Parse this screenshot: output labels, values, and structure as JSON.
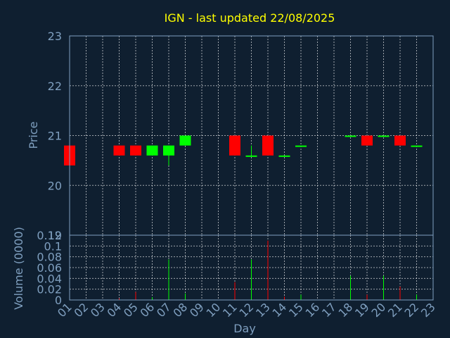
{
  "chart_data": {
    "type": "candlestick",
    "title": "IGN - last updated 22/08/2025",
    "xlabel": "Day",
    "ylabel": "Price",
    "volume_ylabel": "Volume (0000)",
    "categories": [
      "01",
      "02",
      "03",
      "04",
      "05",
      "06",
      "07",
      "08",
      "09",
      "10",
      "11",
      "12",
      "13",
      "14",
      "15",
      "16",
      "17",
      "18",
      "19",
      "20",
      "21",
      "22",
      "23"
    ],
    "price_ylim": [
      19,
      23
    ],
    "price_ticks": [
      "19",
      "20",
      "21",
      "22",
      "23"
    ],
    "volume_ylim": [
      0,
      0.12
    ],
    "volume_ticks": [
      "0",
      "0.02",
      "0.04",
      "0.06",
      "0.08",
      "0.1",
      "0.12"
    ],
    "grid": true,
    "colors": {
      "up": "#00ff00",
      "down": "#ff0000"
    },
    "candles": [
      {
        "day": "01",
        "open": 20.8,
        "close": 20.4,
        "high": 20.8,
        "low": 20.4
      },
      {
        "day": "04",
        "open": 20.8,
        "close": 20.6,
        "high": 20.8,
        "low": 20.6
      },
      {
        "day": "05",
        "open": 20.8,
        "close": 20.6,
        "high": 20.8,
        "low": 20.6
      },
      {
        "day": "06",
        "open": 20.6,
        "close": 20.8,
        "high": 20.8,
        "low": 20.6
      },
      {
        "day": "07",
        "open": 20.6,
        "close": 20.8,
        "high": 20.8,
        "low": 20.4
      },
      {
        "day": "08",
        "open": 20.8,
        "close": 21.0,
        "high": 21.0,
        "low": 20.8
      },
      {
        "day": "11",
        "open": 21.0,
        "close": 20.6,
        "high": 21.0,
        "low": 20.6
      },
      {
        "day": "12",
        "open": 20.6,
        "close": 20.6,
        "high": 20.8,
        "low": 20.6
      },
      {
        "day": "13",
        "open": 21.0,
        "close": 20.6,
        "high": 21.0,
        "low": 20.6
      },
      {
        "day": "14",
        "open": 20.6,
        "close": 20.6,
        "high": 20.6,
        "low": 20.6
      },
      {
        "day": "15",
        "open": 20.8,
        "close": 20.8,
        "high": 20.8,
        "low": 20.8
      },
      {
        "day": "18",
        "open": 21.0,
        "close": 21.0,
        "high": 21.0,
        "low": 21.0
      },
      {
        "day": "19",
        "open": 21.0,
        "close": 20.8,
        "high": 21.0,
        "low": 20.8
      },
      {
        "day": "20",
        "open": 21.0,
        "close": 21.0,
        "high": 21.0,
        "low": 21.0
      },
      {
        "day": "21",
        "open": 21.0,
        "close": 20.8,
        "high": 21.0,
        "low": 20.8
      },
      {
        "day": "22",
        "open": 20.8,
        "close": 20.8,
        "high": 20.8,
        "low": 20.8
      }
    ],
    "volumes": [
      {
        "day": "01",
        "value": 0.002,
        "dir": "down"
      },
      {
        "day": "04",
        "value": 0.003,
        "dir": "down"
      },
      {
        "day": "05",
        "value": 0.015,
        "dir": "down"
      },
      {
        "day": "06",
        "value": 0.005,
        "dir": "up"
      },
      {
        "day": "07",
        "value": 0.075,
        "dir": "up"
      },
      {
        "day": "08",
        "value": 0.012,
        "dir": "up"
      },
      {
        "day": "11",
        "value": 0.033,
        "dir": "down"
      },
      {
        "day": "12",
        "value": 0.075,
        "dir": "up"
      },
      {
        "day": "13",
        "value": 0.11,
        "dir": "down"
      },
      {
        "day": "14",
        "value": 0.006,
        "dir": "down"
      },
      {
        "day": "15",
        "value": 0.01,
        "dir": "up"
      },
      {
        "day": "18",
        "value": 0.045,
        "dir": "up"
      },
      {
        "day": "19",
        "value": 0.01,
        "dir": "down"
      },
      {
        "day": "20",
        "value": 0.045,
        "dir": "up"
      },
      {
        "day": "21",
        "value": 0.025,
        "dir": "down"
      },
      {
        "day": "22",
        "value": 0.01,
        "dir": "up"
      }
    ]
  }
}
